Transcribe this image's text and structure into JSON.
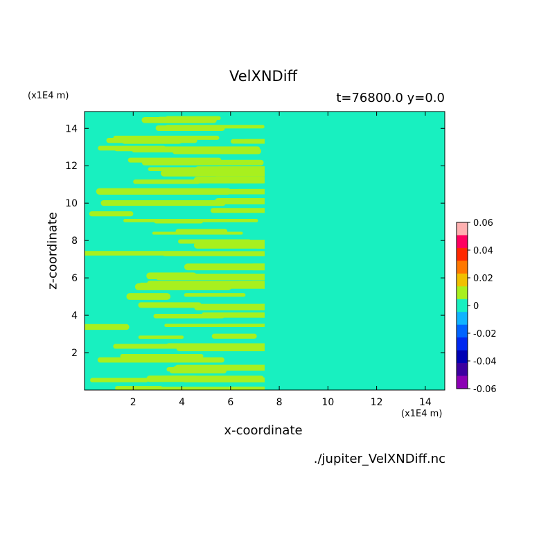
{
  "chart_data": {
    "type": "heatmap",
    "title": "VelXNDiff",
    "subtitle": "t=76800.0 y=0.0",
    "xlabel": "x-coordinate",
    "ylabel": "z-coordinate",
    "x_unit": "(x1E4 m)",
    "z_unit": "(x1E4 m)",
    "xlim": [
      0,
      14.8
    ],
    "ylim": [
      0,
      14.9
    ],
    "x_ticks": [
      2,
      4,
      6,
      8,
      10,
      12,
      14
    ],
    "y_ticks": [
      2,
      4,
      6,
      8,
      10,
      12,
      14
    ],
    "x_tick_labels": [
      "2",
      "4",
      "6",
      "8",
      "10",
      "12",
      "14"
    ],
    "y_tick_labels": [
      "2",
      "4",
      "6",
      "8",
      "10",
      "12",
      "14"
    ],
    "field_values": {
      "dominant_positive": 0.005,
      "dominant_negative": -0.005,
      "positive_color": "#a8f01e",
      "negative_color": "#18f0c0",
      "symmetry_axis_x": 7.4
    },
    "colorbar": {
      "min": -0.06,
      "max": 0.06,
      "tick_values": [
        0.06,
        0.04,
        0.02,
        0,
        -0.02,
        -0.04,
        -0.06
      ],
      "tick_labels": [
        "0.06",
        "0.04",
        "0.02",
        "0",
        "-0.02",
        "-0.04",
        "-0.06"
      ],
      "colors": [
        "#ffb0b0",
        "#ff0060",
        "#ff2800",
        "#ff7800",
        "#f0c000",
        "#a8f01e",
        "#18f0c0",
        "#10b4ff",
        "#0064ff",
        "#0028f0",
        "#0000b4",
        "#3c00a0",
        "#8c00b4"
      ]
    },
    "grid": false,
    "legend": "colorbar at right"
  },
  "source_file": "./jupiter_VelXNDiff.nc"
}
